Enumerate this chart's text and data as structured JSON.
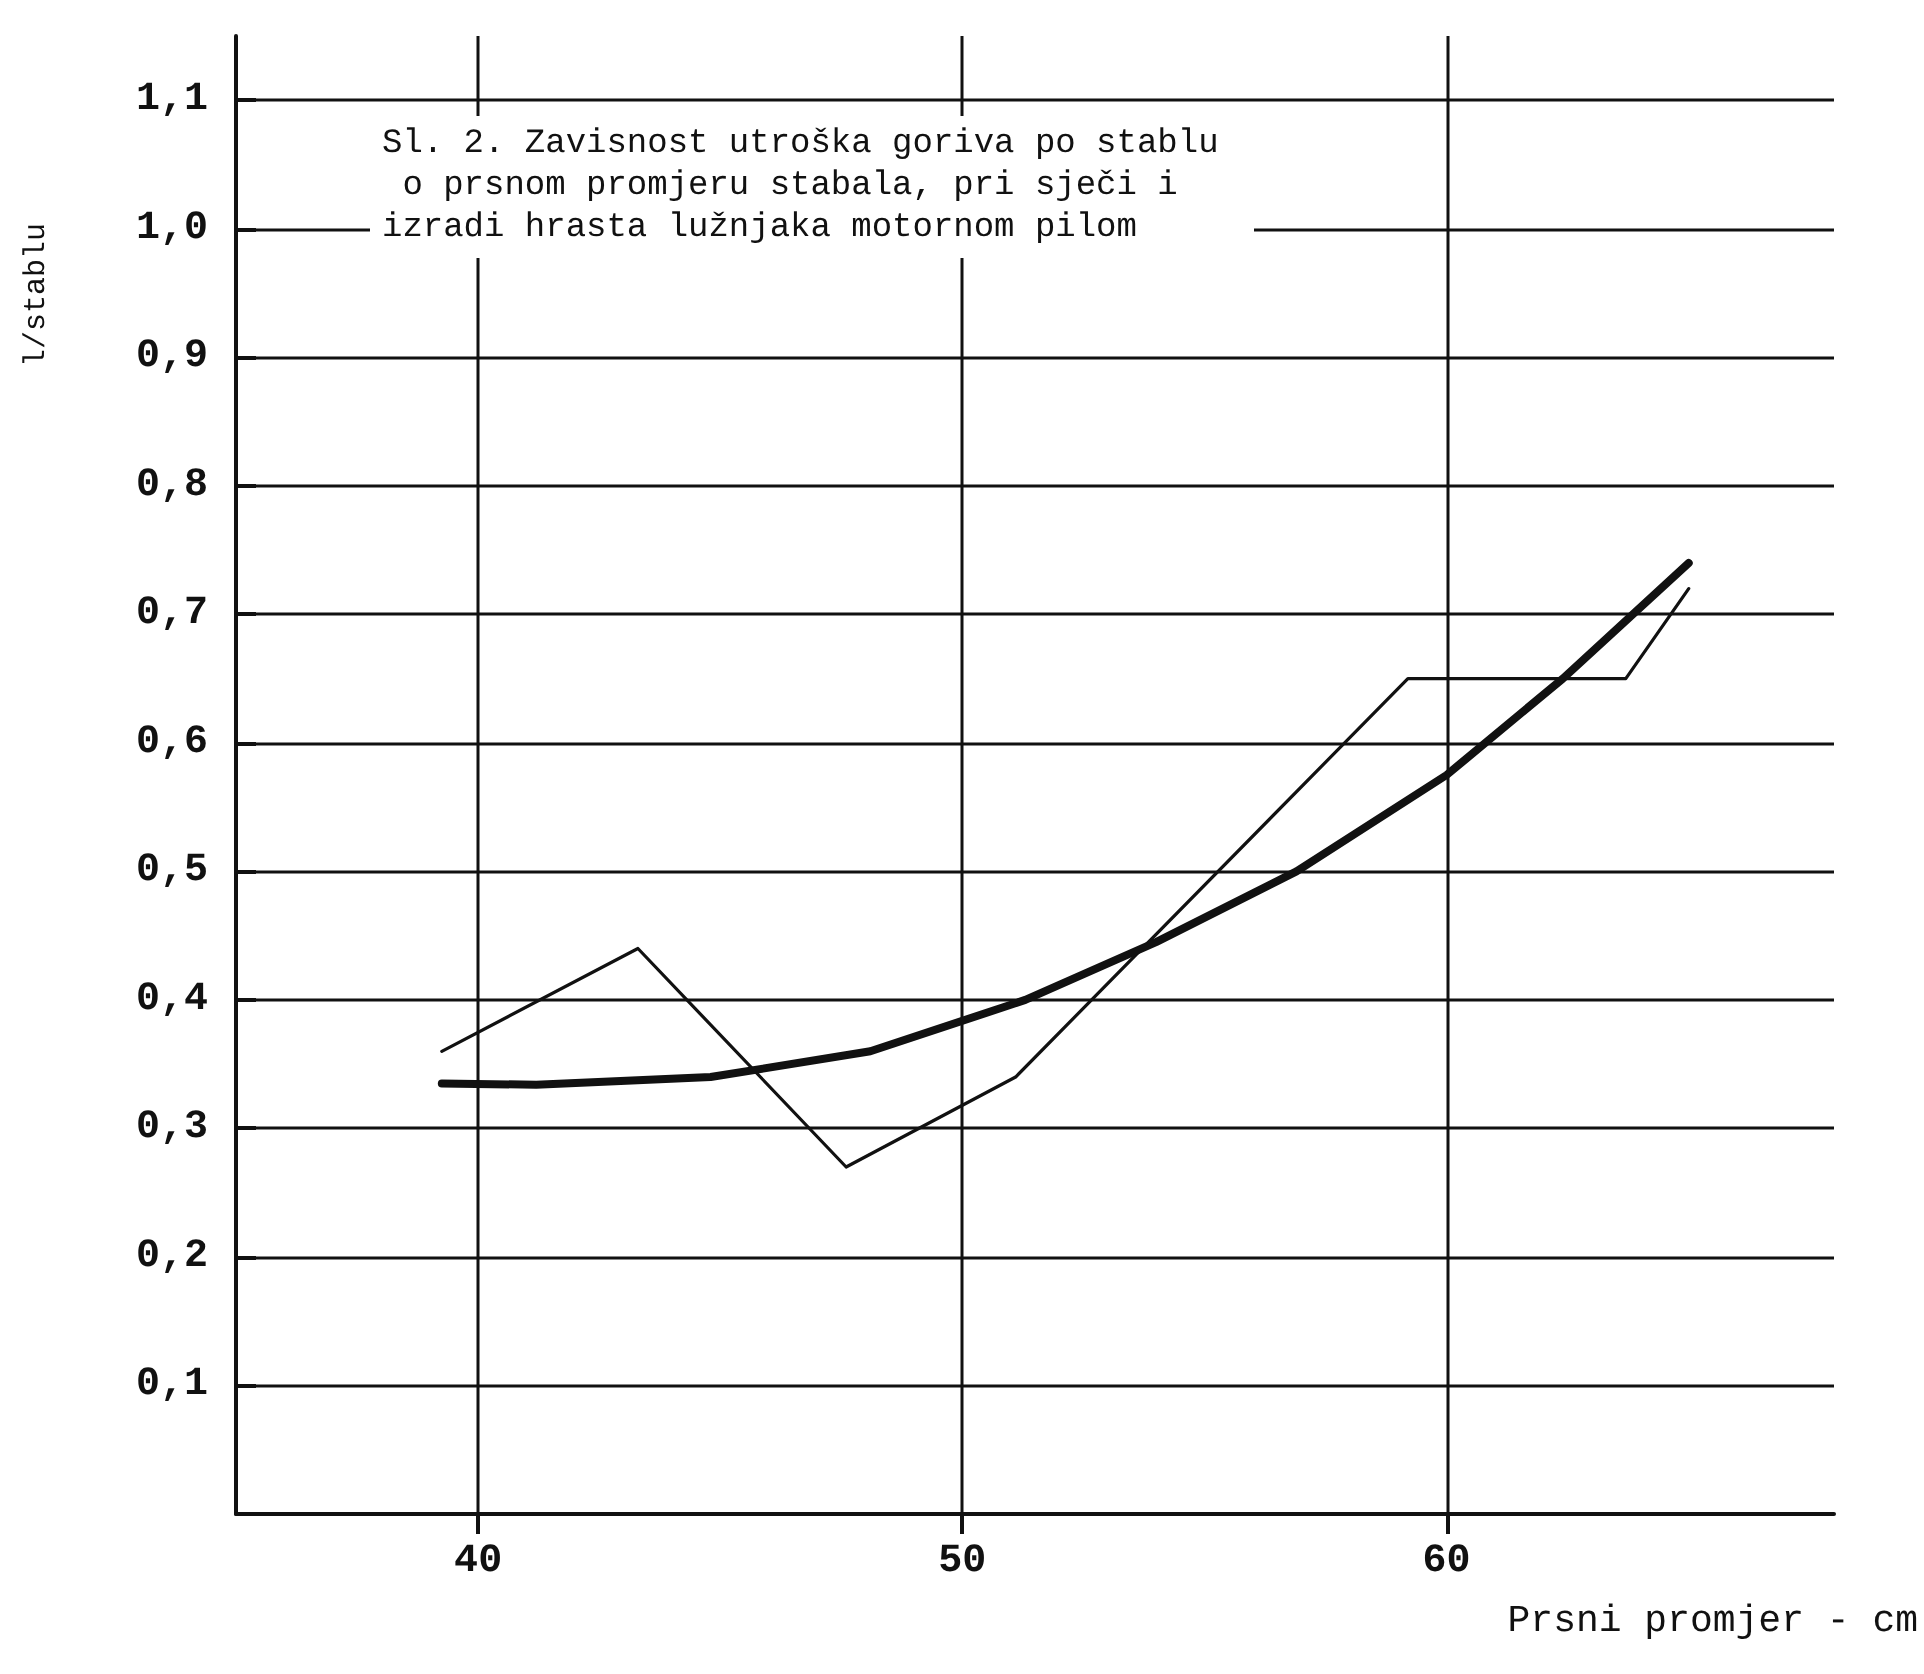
{
  "chart_data": {
    "type": "line",
    "title": "Sl. 2. Zavisnost utroška goriva po stablu o prsnom promjeru stabala, pri sječi i izradi hrasta lužnjaka motornom pilom",
    "xlabel": "Prsni promjer - cm",
    "ylabel": "l/stablu",
    "xlim": [
      35,
      68
    ],
    "xticks": [
      40,
      50,
      60
    ],
    "ylim": [
      0,
      1.15
    ],
    "yticks": [
      {
        "value": 0.1,
        "label": "0,1"
      },
      {
        "value": 0.2,
        "label": "0,2"
      },
      {
        "value": 0.3,
        "label": "0,3"
      },
      {
        "value": 0.4,
        "label": "0,4"
      },
      {
        "value": 0.5,
        "label": "0,5"
      },
      {
        "value": 0.6,
        "label": "0,6"
      },
      {
        "value": 0.7,
        "label": "0,7"
      },
      {
        "value": 0.8,
        "label": "0,8"
      },
      {
        "value": 0.9,
        "label": "0,9"
      },
      {
        "value": 1.0,
        "label": "1,0"
      },
      {
        "value": 1.1,
        "label": "1,1"
      }
    ],
    "grid": true,
    "marker": "none",
    "line_style": "solid",
    "series": [
      {
        "color": "#111111",
        "x": [
          39.25,
          43.3,
          47.6,
          51.1,
          59.2,
          63.7,
          65.0
        ],
        "values": [
          0.36,
          0.44,
          0.27,
          0.34,
          0.65,
          0.65,
          0.72
        ]
      },
      {
        "color": "#111111",
        "x": [
          39.25,
          41.2,
          44.8,
          48.1,
          51.3,
          54.0,
          56.9,
          60.0,
          62.4,
          65.0
        ],
        "values": [
          0.335,
          0.334,
          0.34,
          0.36,
          0.4,
          0.445,
          0.5,
          0.575,
          0.65,
          0.74
        ]
      }
    ]
  }
}
